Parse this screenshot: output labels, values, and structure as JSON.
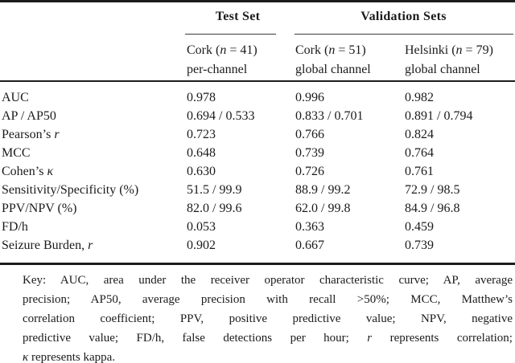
{
  "table": {
    "groups": [
      {
        "label": "Test Set"
      },
      {
        "label": "Validation Sets"
      }
    ],
    "columns": [
      {
        "name_pre": "Cork (",
        "name_var": "n",
        "name_post": " = 41)",
        "subtitle": "per-channel"
      },
      {
        "name_pre": "Cork (",
        "name_var": "n",
        "name_post": " = 51)",
        "subtitle": "global channel"
      },
      {
        "name_pre": "Helsinki (",
        "name_var": "n",
        "name_post": " = 79)",
        "subtitle": "global channel"
      }
    ],
    "rows": [
      {
        "label": "AUC",
        "label_italic": "",
        "values": [
          "0.978",
          "0.996",
          "0.982"
        ]
      },
      {
        "label": "AP / AP50",
        "label_italic": "",
        "values": [
          "0.694 / 0.533",
          "0.833 / 0.701",
          "0.891 / 0.794"
        ]
      },
      {
        "label": "Pearson’s ",
        "label_italic": "r",
        "values": [
          "0.723",
          "0.766",
          "0.824"
        ]
      },
      {
        "label": "MCC",
        "label_italic": "",
        "values": [
          "0.648",
          "0.739",
          "0.764"
        ]
      },
      {
        "label": "Cohen’s ",
        "label_italic": "κ",
        "values": [
          "0.630",
          "0.726",
          "0.761"
        ]
      },
      {
        "label": "Sensitivity/Specificity (%)",
        "label_italic": "",
        "values": [
          "51.5 / 99.9",
          "88.9 / 99.2",
          "72.9 / 98.5"
        ]
      },
      {
        "label": "PPV/NPV (%)",
        "label_italic": "",
        "values": [
          "82.0 / 99.6",
          "62.0 / 99.8",
          "84.9 / 96.8"
        ]
      },
      {
        "label": "FD/h",
        "label_italic": "",
        "values": [
          "0.053",
          "0.363",
          "0.459"
        ]
      },
      {
        "label": "Seizure Burden, ",
        "label_italic": "r",
        "values": [
          "0.902",
          "0.667",
          "0.739"
        ]
      }
    ]
  },
  "key": {
    "lines": [
      {
        "pre": "Key: AUC, area under the receiver operator characteristic curve; AP, average",
        "italic": "",
        "post": ""
      },
      {
        "pre": "precision; AP50, average precision with recall >50%; MCC, Matthew’s",
        "italic": "",
        "post": ""
      },
      {
        "pre": "correlation coefficient; PPV, positive predictive value; NPV, negative",
        "italic": "",
        "post": ""
      },
      {
        "pre": "predictive value; FD/h, false detections per hour; ",
        "italic": "r",
        "post": " represents correlation;"
      },
      {
        "pre": "",
        "italic": "κ",
        "post": " represents kappa."
      }
    ]
  },
  "colors": {
    "text": "#1b1b1b",
    "rule": "#1c1c1c",
    "background": "#ffffff"
  }
}
